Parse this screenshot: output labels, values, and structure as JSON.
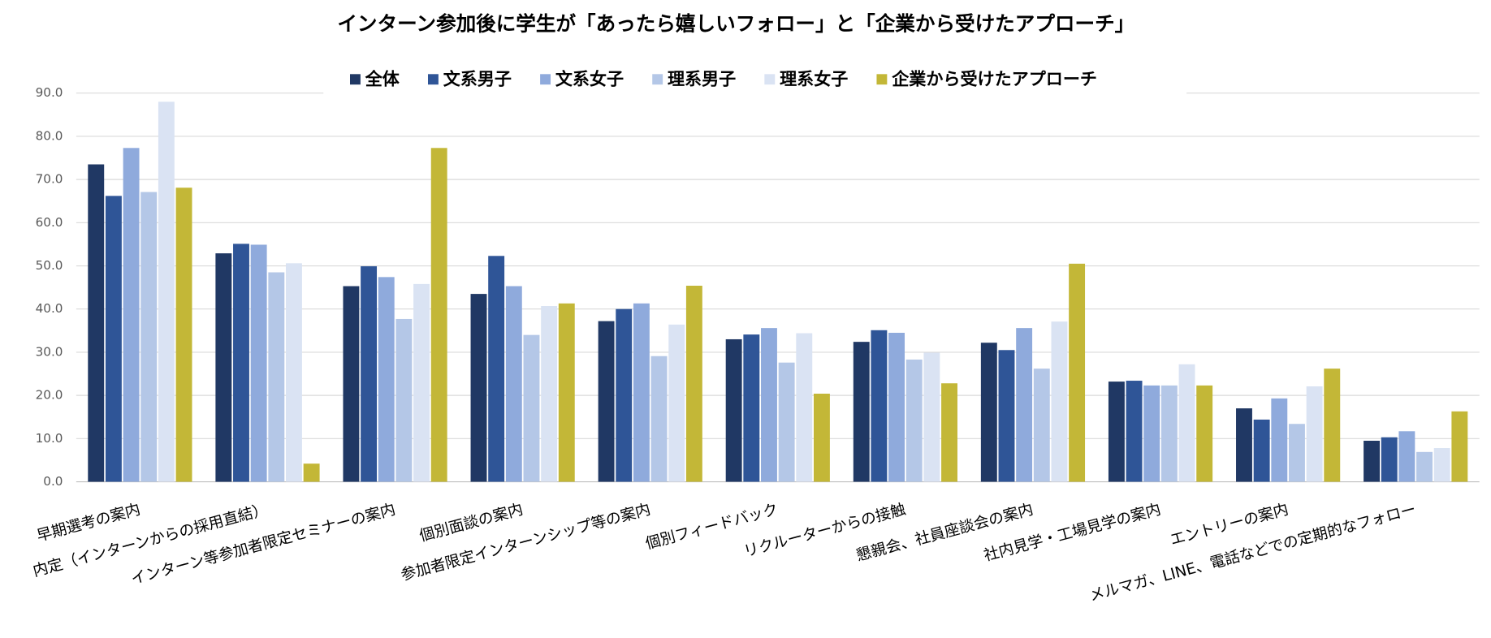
{
  "chart_data": {
    "type": "bar",
    "title": "インターン参加後に学生が「あったら嬉しいフォロー」と「企業から受けたアプローチ」",
    "categories": [
      "早期選考の案内",
      "内定（インターンからの採用直結）",
      "インターン等参加者限定セミナーの案内",
      "個別面談の案内",
      "参加者限定インターンシップ等の案内",
      "個別フィードバック",
      "リクルーターからの接触",
      "懇親会、社員座談会の案内",
      "社内見学・工場見学の案内",
      "エントリーの案内",
      "メルマガ、LINE、電話などでの定期的なフォロー"
    ],
    "series": [
      {
        "name": "全体",
        "color": "#203864",
        "values": [
          73.5,
          52.9,
          45.3,
          43.5,
          37.2,
          33.0,
          32.4,
          32.2,
          23.2,
          17.0,
          9.5
        ]
      },
      {
        "name": "文系男子",
        "color": "#2f5597",
        "values": [
          66.2,
          55.1,
          49.9,
          52.3,
          40.0,
          34.1,
          35.1,
          30.5,
          23.4,
          14.4,
          10.3
        ]
      },
      {
        "name": "文系女子",
        "color": "#8faadc",
        "values": [
          77.3,
          54.9,
          47.4,
          45.3,
          41.3,
          35.6,
          34.5,
          35.6,
          22.3,
          19.3,
          11.7
        ]
      },
      {
        "name": "理系男子",
        "color": "#b4c7e7",
        "values": [
          67.1,
          48.5,
          37.7,
          34.0,
          29.1,
          27.6,
          28.3,
          26.2,
          22.3,
          13.4,
          6.9
        ]
      },
      {
        "name": "理系女子",
        "color": "#dae3f3",
        "values": [
          88.0,
          50.6,
          45.8,
          40.7,
          36.4,
          34.4,
          29.9,
          37.1,
          27.2,
          22.1,
          7.8
        ]
      },
      {
        "name": "企業から受けたアプローチ",
        "color": "#c3b737",
        "values": [
          68.1,
          4.2,
          77.3,
          41.3,
          45.4,
          20.4,
          22.8,
          50.5,
          22.3,
          26.2,
          16.3
        ]
      }
    ],
    "ylim": [
      0,
      90
    ],
    "yticks": [
      {
        "value": 0,
        "label": "0.0"
      },
      {
        "value": 10,
        "label": "10.0"
      },
      {
        "value": 20,
        "label": "20.0"
      },
      {
        "value": 30,
        "label": "30.0"
      },
      {
        "value": 40,
        "label": "40.0"
      },
      {
        "value": 50,
        "label": "50.0"
      },
      {
        "value": 60,
        "label": "60.0"
      },
      {
        "value": 70,
        "label": "70.0"
      },
      {
        "value": 80,
        "label": "80.0"
      },
      {
        "value": 90,
        "label": "90.0"
      }
    ],
    "grid": true
  }
}
